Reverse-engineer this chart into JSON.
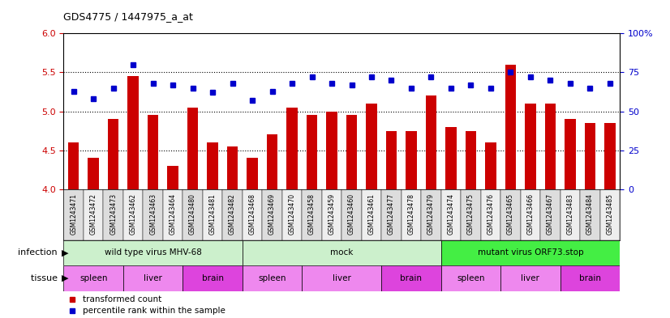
{
  "title": "GDS4775 / 1447975_a_at",
  "samples": [
    "GSM1243471",
    "GSM1243472",
    "GSM1243473",
    "GSM1243462",
    "GSM1243463",
    "GSM1243464",
    "GSM1243480",
    "GSM1243481",
    "GSM1243482",
    "GSM1243468",
    "GSM1243469",
    "GSM1243470",
    "GSM1243458",
    "GSM1243459",
    "GSM1243460",
    "GSM1243461",
    "GSM1243477",
    "GSM1243478",
    "GSM1243479",
    "GSM1243474",
    "GSM1243475",
    "GSM1243476",
    "GSM1243465",
    "GSM1243466",
    "GSM1243467",
    "GSM1243483",
    "GSM1243484",
    "GSM1243485"
  ],
  "bar_values": [
    4.6,
    4.4,
    4.9,
    5.45,
    4.95,
    4.3,
    5.05,
    4.6,
    4.55,
    4.4,
    4.7,
    5.05,
    4.95,
    5.0,
    4.95,
    5.1,
    4.75,
    4.75,
    5.2,
    4.8,
    4.75,
    4.6,
    5.6,
    5.1,
    5.1,
    4.9,
    4.85,
    4.85
  ],
  "percentile_values": [
    63,
    58,
    65,
    80,
    68,
    67,
    65,
    62,
    68,
    57,
    63,
    68,
    72,
    68,
    67,
    72,
    70,
    65,
    72,
    65,
    67,
    65,
    75,
    72,
    70,
    68,
    65,
    68
  ],
  "bar_color": "#cc0000",
  "percentile_color": "#0000cc",
  "ylim_left": [
    4.0,
    6.0
  ],
  "ylim_right": [
    0,
    100
  ],
  "yticks_left": [
    4.0,
    4.5,
    5.0,
    5.5,
    6.0
  ],
  "yticks_right": [
    0,
    25,
    50,
    75,
    100
  ],
  "ytick_right_labels": [
    "0",
    "25",
    "50",
    "75",
    "100%"
  ],
  "infection_groups": [
    {
      "label": "wild type virus MHV-68",
      "start": 0,
      "end": 9,
      "color": "#ccf0cc"
    },
    {
      "label": "mock",
      "start": 9,
      "end": 19,
      "color": "#ccf0cc"
    },
    {
      "label": "mutant virus ORF73.stop",
      "start": 19,
      "end": 28,
      "color": "#44ee44"
    }
  ],
  "tissue_groups": [
    {
      "label": "spleen",
      "start": 0,
      "end": 3,
      "color": "#ee88ee"
    },
    {
      "label": "liver",
      "start": 3,
      "end": 6,
      "color": "#ee88ee"
    },
    {
      "label": "brain",
      "start": 6,
      "end": 9,
      "color": "#dd44dd"
    },
    {
      "label": "spleen",
      "start": 9,
      "end": 12,
      "color": "#ee88ee"
    },
    {
      "label": "liver",
      "start": 12,
      "end": 16,
      "color": "#ee88ee"
    },
    {
      "label": "brain",
      "start": 16,
      "end": 19,
      "color": "#dd44dd"
    },
    {
      "label": "spleen",
      "start": 19,
      "end": 22,
      "color": "#ee88ee"
    },
    {
      "label": "liver",
      "start": 22,
      "end": 25,
      "color": "#ee88ee"
    },
    {
      "label": "brain",
      "start": 25,
      "end": 28,
      "color": "#dd44dd"
    }
  ],
  "legend_items": [
    {
      "label": "transformed count",
      "color": "#cc0000"
    },
    {
      "label": "percentile rank within the sample",
      "color": "#0000cc"
    }
  ],
  "infection_label": "infection",
  "tissue_label": "tissue",
  "background_color": "#ffffff",
  "dotted_lines": [
    4.5,
    5.0,
    5.5
  ],
  "bar_bottom": 4.0,
  "xtick_bg_odd": "#dddddd",
  "xtick_bg_even": "#eeeeee"
}
